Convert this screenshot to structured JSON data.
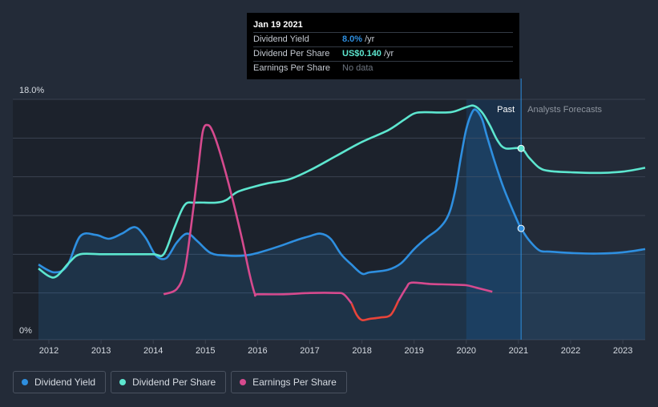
{
  "tooltip": {
    "date": "Jan 19 2021",
    "rows": [
      {
        "label": "Dividend Yield",
        "value": "8.0%",
        "unit": "/yr",
        "color": "#2e8fe0"
      },
      {
        "label": "Dividend Per Share",
        "value": "US$0.140",
        "unit": "/yr",
        "color": "#5de6cf"
      },
      {
        "label": "Earnings Per Share",
        "value": "No data",
        "unit": "",
        "color": "#6f7782"
      }
    ]
  },
  "regions": {
    "past": "Past",
    "forecast": "Analysts Forecasts"
  },
  "legend": [
    {
      "label": "Dividend Yield",
      "color": "#2e8fe0"
    },
    {
      "label": "Dividend Per Share",
      "color": "#5de6cf"
    },
    {
      "label": "Earnings Per Share",
      "color": "#d64a8e"
    }
  ],
  "chart_data": {
    "type": "line",
    "y_axis_labels": [
      "18.0%",
      "0%"
    ],
    "ylim": [
      0,
      18
    ],
    "xlim": [
      2011.8,
      2023.5
    ],
    "x_ticks": [
      "2012",
      "2013",
      "2014",
      "2015",
      "2016",
      "2017",
      "2018",
      "2019",
      "2020",
      "2021",
      "2022",
      "2023"
    ],
    "divider_x": 2021.05,
    "past_band": [
      2020.0,
      2021.05
    ],
    "series": [
      {
        "name": "Dividend Yield",
        "color": "#2e8fe0",
        "fill": true,
        "values": [
          [
            2011.8,
            5.2
          ],
          [
            2012.1,
            4.6
          ],
          [
            2012.35,
            5.1
          ],
          [
            2012.6,
            7.4
          ],
          [
            2012.9,
            7.5
          ],
          [
            2013.15,
            7.2
          ],
          [
            2013.4,
            7.6
          ],
          [
            2013.65,
            8.1
          ],
          [
            2013.85,
            7.3
          ],
          [
            2014.05,
            5.9
          ],
          [
            2014.25,
            5.7
          ],
          [
            2014.45,
            6.9
          ],
          [
            2014.65,
            7.6
          ],
          [
            2014.85,
            7.0
          ],
          [
            2015.1,
            6.1
          ],
          [
            2015.4,
            5.9
          ],
          [
            2015.75,
            5.9
          ],
          [
            2016.0,
            6.1
          ],
          [
            2016.4,
            6.6
          ],
          [
            2016.75,
            7.1
          ],
          [
            2017.0,
            7.4
          ],
          [
            2017.2,
            7.6
          ],
          [
            2017.4,
            7.2
          ],
          [
            2017.6,
            6.0
          ],
          [
            2017.8,
            5.2
          ],
          [
            2018.0,
            4.5
          ],
          [
            2018.15,
            4.6
          ],
          [
            2018.5,
            4.8
          ],
          [
            2018.75,
            5.3
          ],
          [
            2019.0,
            6.4
          ],
          [
            2019.25,
            7.3
          ],
          [
            2019.45,
            7.9
          ],
          [
            2019.6,
            8.6
          ],
          [
            2019.7,
            9.5
          ],
          [
            2019.8,
            11.2
          ],
          [
            2019.9,
            13.6
          ],
          [
            2020.0,
            15.7
          ],
          [
            2020.1,
            16.9
          ],
          [
            2020.18,
            17.2
          ],
          [
            2020.3,
            16.5
          ],
          [
            2020.4,
            15.1
          ],
          [
            2020.55,
            13.1
          ],
          [
            2020.7,
            11.3
          ],
          [
            2020.85,
            9.8
          ],
          [
            2021.0,
            8.4
          ],
          [
            2021.05,
            8.0
          ],
          [
            2021.2,
            7.1
          ],
          [
            2021.4,
            6.3
          ],
          [
            2021.6,
            6.2
          ],
          [
            2022.0,
            6.1
          ],
          [
            2022.5,
            6.05
          ],
          [
            2023.0,
            6.15
          ],
          [
            2023.5,
            6.4
          ]
        ]
      },
      {
        "name": "Dividend Per Share",
        "color": "#5de6cf",
        "fill": false,
        "values": [
          [
            2011.8,
            4.9
          ],
          [
            2012.0,
            4.3
          ],
          [
            2012.15,
            4.3
          ],
          [
            2012.4,
            5.4
          ],
          [
            2012.6,
            6.0
          ],
          [
            2013.0,
            6.0
          ],
          [
            2013.5,
            6.0
          ],
          [
            2014.0,
            6.0
          ],
          [
            2014.2,
            6.0
          ],
          [
            2014.4,
            8.0
          ],
          [
            2014.6,
            9.8
          ],
          [
            2014.8,
            10.0
          ],
          [
            2015.2,
            10.0
          ],
          [
            2015.4,
            10.2
          ],
          [
            2015.6,
            10.8
          ],
          [
            2015.9,
            11.2
          ],
          [
            2016.2,
            11.5
          ],
          [
            2016.6,
            11.8
          ],
          [
            2017.0,
            12.5
          ],
          [
            2017.5,
            13.6
          ],
          [
            2018.0,
            14.7
          ],
          [
            2018.5,
            15.6
          ],
          [
            2018.8,
            16.4
          ],
          [
            2019.0,
            16.9
          ],
          [
            2019.2,
            17.0
          ],
          [
            2019.7,
            17.0
          ],
          [
            2020.0,
            17.4
          ],
          [
            2020.15,
            17.5
          ],
          [
            2020.3,
            17.0
          ],
          [
            2020.45,
            16.0
          ],
          [
            2020.6,
            14.8
          ],
          [
            2020.75,
            14.2
          ],
          [
            2021.05,
            14.2
          ],
          [
            2021.2,
            13.5
          ],
          [
            2021.4,
            12.7
          ],
          [
            2021.6,
            12.45
          ],
          [
            2022.0,
            12.35
          ],
          [
            2022.5,
            12.3
          ],
          [
            2023.0,
            12.4
          ],
          [
            2023.5,
            12.7
          ]
        ]
      },
      {
        "name": "Earnings Per Share",
        "color": "#d64a8e",
        "negative_color": "#e8443a",
        "values": [
          [
            2014.2,
            2.9
          ],
          [
            2014.45,
            3.3
          ],
          [
            2014.6,
            4.7
          ],
          [
            2014.72,
            8.0
          ],
          [
            2014.85,
            12.2
          ],
          [
            2014.95,
            15.5
          ],
          [
            2015.05,
            16.0
          ],
          [
            2015.15,
            15.4
          ],
          [
            2015.3,
            13.6
          ],
          [
            2015.5,
            10.6
          ],
          [
            2015.7,
            7.2
          ],
          [
            2015.85,
            4.4
          ],
          [
            2015.95,
            2.9
          ],
          [
            2016.0,
            2.9
          ],
          [
            2016.5,
            2.9
          ],
          [
            2017.0,
            3.0
          ],
          [
            2017.5,
            3.0
          ],
          [
            2017.65,
            2.9
          ],
          [
            2017.8,
            2.2
          ],
          [
            2017.9,
            1.3
          ],
          [
            2018.0,
            0.9
          ],
          [
            2018.15,
            1.0
          ],
          [
            2018.35,
            1.1
          ],
          [
            2018.55,
            1.3
          ],
          [
            2018.7,
            2.4
          ],
          [
            2018.85,
            3.4
          ],
          [
            2018.95,
            3.8
          ],
          [
            2019.3,
            3.7
          ],
          [
            2019.7,
            3.65
          ],
          [
            2020.0,
            3.6
          ],
          [
            2020.2,
            3.4
          ],
          [
            2020.5,
            3.1
          ]
        ]
      }
    ],
    "markers": [
      {
        "series": "Dividend Yield",
        "x": 2021.05,
        "y": 8.0
      },
      {
        "series": "Dividend Per Share",
        "x": 2021.05,
        "y": 14.2
      }
    ]
  }
}
